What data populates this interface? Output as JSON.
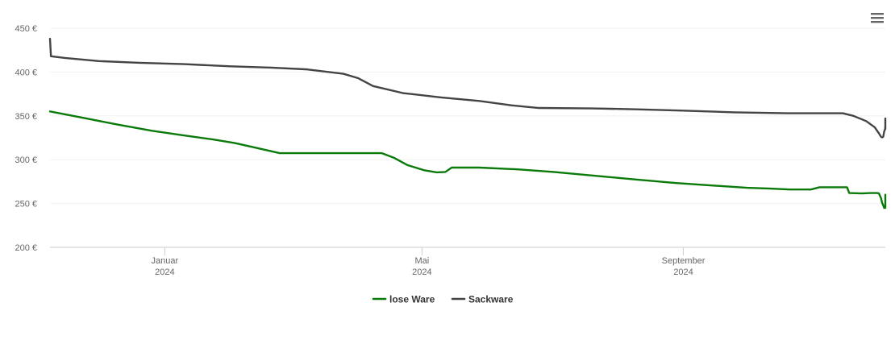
{
  "chart_data": {
    "type": "line",
    "title": "",
    "xlabel": "",
    "ylabel": "",
    "ylim": [
      200,
      450
    ],
    "y_ticks": [
      200,
      250,
      300,
      350,
      400,
      450
    ],
    "y_tick_labels": [
      "200 €",
      "250 €",
      "300 €",
      "350 €",
      "400 €",
      "450 €"
    ],
    "x_range": [
      "2023-11-08",
      "2024-12-05"
    ],
    "x_ticks": [
      {
        "date": "2024-01-01",
        "label_line1": "Januar",
        "label_line2": "2024"
      },
      {
        "date": "2024-05-01",
        "label_line1": "Mai",
        "label_line2": "2024"
      },
      {
        "date": "2024-09-01",
        "label_line1": "September",
        "label_line2": "2024"
      }
    ],
    "grid": "horizontal",
    "legend_position": "bottom-center",
    "series": [
      {
        "name": "lose Ware",
        "color": "#0a7a0a",
        "points": [
          [
            "2023-11-08",
            355
          ],
          [
            "2023-11-23",
            348
          ],
          [
            "2023-12-10",
            340
          ],
          [
            "2023-12-26",
            333
          ],
          [
            "2024-01-09",
            328
          ],
          [
            "2024-01-24",
            323
          ],
          [
            "2024-02-03",
            319
          ],
          [
            "2024-02-14",
            313
          ],
          [
            "2024-02-24",
            307.5
          ],
          [
            "2024-03-10",
            307.5
          ],
          [
            "2024-04-05",
            307.5
          ],
          [
            "2024-04-12",
            307.5
          ],
          [
            "2024-04-18",
            302
          ],
          [
            "2024-04-24",
            294
          ],
          [
            "2024-05-02",
            288
          ],
          [
            "2024-05-08",
            285.5
          ],
          [
            "2024-05-12",
            286
          ],
          [
            "2024-05-15",
            291
          ],
          [
            "2024-05-28",
            291
          ],
          [
            "2024-06-15",
            289
          ],
          [
            "2024-07-02",
            286
          ],
          [
            "2024-07-20",
            282
          ],
          [
            "2024-08-07",
            278
          ],
          [
            "2024-08-28",
            273.5
          ],
          [
            "2024-09-15",
            270.5
          ],
          [
            "2024-10-01",
            268
          ],
          [
            "2024-10-12",
            267
          ],
          [
            "2024-10-21",
            266
          ],
          [
            "2024-10-26",
            266
          ],
          [
            "2024-10-31",
            266
          ],
          [
            "2024-11-04",
            268.5
          ],
          [
            "2024-11-12",
            268.5
          ],
          [
            "2024-11-17",
            268.5
          ],
          [
            "2024-11-18",
            262
          ],
          [
            "2024-11-24",
            261.5
          ],
          [
            "2024-11-28",
            262
          ],
          [
            "2024-12-01",
            262
          ],
          [
            "2024-12-02",
            261.5
          ],
          [
            "2024-12-03",
            256
          ],
          [
            "2024-12-03",
            251
          ],
          [
            "2024-12-04",
            248
          ],
          [
            "2024-12-04",
            245
          ],
          [
            "2024-12-05",
            245
          ],
          [
            "2024-12-05",
            251
          ],
          [
            "2024-12-05",
            259
          ],
          [
            "2024-12-05",
            260
          ],
          [
            "2024-12-05",
            259.5
          ]
        ]
      },
      {
        "name": "Sackware",
        "color": "#444444",
        "points": [
          [
            "2023-11-08",
            438
          ],
          [
            "2023-11-08",
            418
          ],
          [
            "2023-11-15",
            416
          ],
          [
            "2023-12-01",
            412.5
          ],
          [
            "2023-12-20",
            410.5
          ],
          [
            "2024-01-10",
            409
          ],
          [
            "2024-02-01",
            406.5
          ],
          [
            "2024-02-20",
            405
          ],
          [
            "2024-03-08",
            403
          ],
          [
            "2024-03-25",
            398
          ],
          [
            "2024-04-01",
            393
          ],
          [
            "2024-04-08",
            384
          ],
          [
            "2024-04-22",
            376
          ],
          [
            "2024-05-10",
            371
          ],
          [
            "2024-05-28",
            367
          ],
          [
            "2024-06-12",
            362
          ],
          [
            "2024-06-25",
            359
          ],
          [
            "2024-07-20",
            358.5
          ],
          [
            "2024-08-10",
            357.5
          ],
          [
            "2024-09-01",
            356
          ],
          [
            "2024-09-25",
            354
          ],
          [
            "2024-10-20",
            353
          ],
          [
            "2024-11-05",
            353
          ],
          [
            "2024-11-15",
            353
          ],
          [
            "2024-11-20",
            350
          ],
          [
            "2024-11-26",
            344
          ],
          [
            "2024-11-30",
            337
          ],
          [
            "2024-12-02",
            330
          ],
          [
            "2024-12-03",
            326
          ],
          [
            "2024-12-03",
            325.5
          ],
          [
            "2024-12-04",
            326
          ],
          [
            "2024-12-04",
            332
          ],
          [
            "2024-12-04",
            335
          ],
          [
            "2024-12-04",
            338
          ],
          [
            "2024-12-04",
            343
          ],
          [
            "2024-12-04",
            347
          ],
          [
            "2024-12-05",
            346
          ],
          [
            "2024-12-05",
            342
          ],
          [
            "2024-12-05",
            341
          ],
          [
            "2024-12-05",
            340
          ],
          [
            "2024-12-05",
            335
          ]
        ]
      }
    ]
  },
  "icons": {
    "menu": "hamburger-menu-icon"
  }
}
